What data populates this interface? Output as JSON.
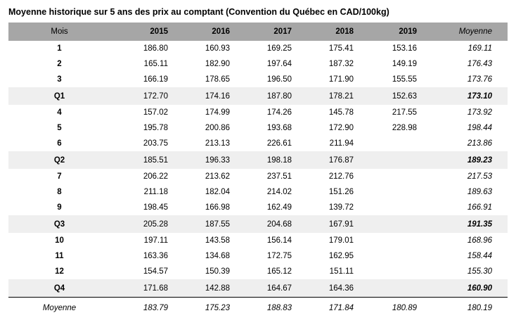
{
  "title": "Moyenne historique sur 5 ans des prix au comptant (Convention du Québec en CAD/100kg)",
  "chart_data": {
    "type": "table",
    "title": "Moyenne historique sur 5 ans des prix au comptant (Convention du Québec en CAD/100kg)",
    "columns": [
      "Mois",
      "2015",
      "2016",
      "2017",
      "2018",
      "2019",
      "Moyenne"
    ],
    "header_bg": "#a6a6a6",
    "quarter_row_bg": "#efefef",
    "rows": [
      {
        "label": "1",
        "kind": "month",
        "values": [
          "186.80",
          "160.93",
          "169.25",
          "175.41",
          "153.16",
          "169.11"
        ]
      },
      {
        "label": "2",
        "kind": "month",
        "values": [
          "165.11",
          "182.90",
          "197.64",
          "187.32",
          "149.19",
          "176.43"
        ]
      },
      {
        "label": "3",
        "kind": "month",
        "values": [
          "166.19",
          "178.65",
          "196.50",
          "171.90",
          "155.55",
          "173.76"
        ]
      },
      {
        "label": "Q1",
        "kind": "quarter",
        "values": [
          "172.70",
          "174.16",
          "187.80",
          "178.21",
          "152.63",
          "173.10"
        ]
      },
      {
        "label": "4",
        "kind": "month",
        "values": [
          "157.02",
          "174.99",
          "174.26",
          "145.78",
          "217.55",
          "173.92"
        ]
      },
      {
        "label": "5",
        "kind": "month",
        "values": [
          "195.78",
          "200.86",
          "193.68",
          "172.90",
          "228.98",
          "198.44"
        ]
      },
      {
        "label": "6",
        "kind": "month",
        "values": [
          "203.75",
          "213.13",
          "226.61",
          "211.94",
          "",
          "213.86"
        ]
      },
      {
        "label": "Q2",
        "kind": "quarter",
        "values": [
          "185.51",
          "196.33",
          "198.18",
          "176.87",
          "",
          "189.23"
        ]
      },
      {
        "label": "7",
        "kind": "month",
        "values": [
          "206.22",
          "213.62",
          "237.51",
          "212.76",
          "",
          "217.53"
        ]
      },
      {
        "label": "8",
        "kind": "month",
        "values": [
          "211.18",
          "182.04",
          "214.02",
          "151.26",
          "",
          "189.63"
        ]
      },
      {
        "label": "9",
        "kind": "month",
        "values": [
          "198.45",
          "166.98",
          "162.49",
          "139.72",
          "",
          "166.91"
        ]
      },
      {
        "label": "Q3",
        "kind": "quarter",
        "values": [
          "205.28",
          "187.55",
          "204.68",
          "167.91",
          "",
          "191.35"
        ]
      },
      {
        "label": "10",
        "kind": "month",
        "values": [
          "197.11",
          "143.58",
          "156.14",
          "179.01",
          "",
          "168.96"
        ]
      },
      {
        "label": "11",
        "kind": "month",
        "values": [
          "163.36",
          "134.68",
          "172.75",
          "162.95",
          "",
          "158.44"
        ]
      },
      {
        "label": "12",
        "kind": "month",
        "values": [
          "154.57",
          "150.39",
          "165.12",
          "151.11",
          "",
          "155.30"
        ]
      },
      {
        "label": "Q4",
        "kind": "quarter",
        "values": [
          "171.68",
          "142.88",
          "164.67",
          "164.36",
          "",
          "160.90"
        ]
      },
      {
        "label": "Moyenne",
        "kind": "summary",
        "values": [
          "183.79",
          "175.23",
          "188.83",
          "171.84",
          "180.89",
          "180.19"
        ]
      }
    ]
  }
}
